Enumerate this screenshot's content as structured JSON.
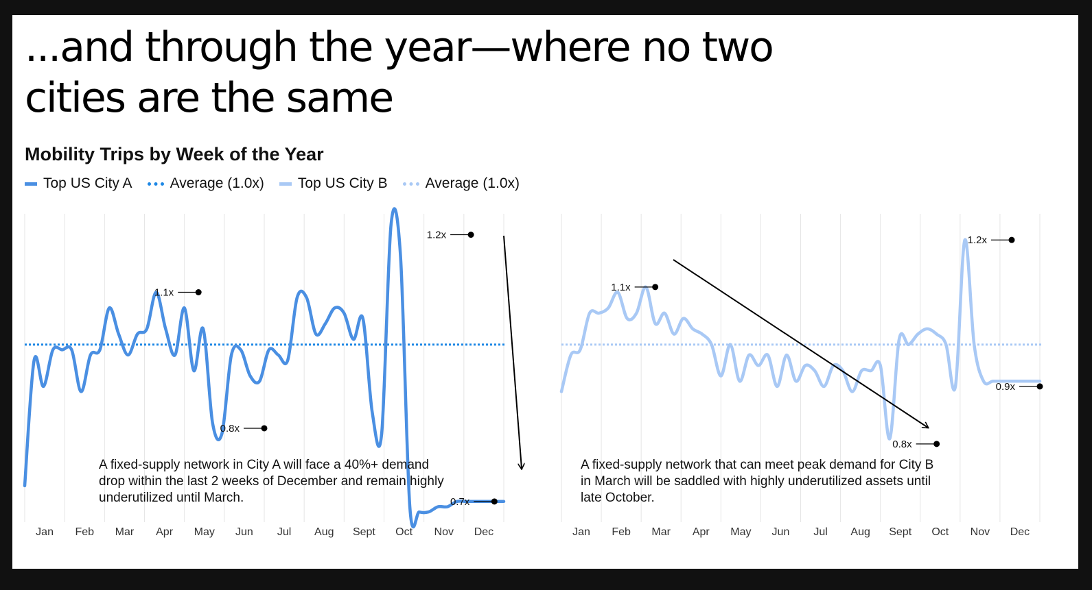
{
  "headline": {
    "line1": "...and through the year—where no two",
    "line2": "cities are the same"
  },
  "chart_title": "Mobility Trips by Week of the Year",
  "legend": [
    {
      "label": "Top US City A",
      "style": "solid",
      "color": "#4A8FE2"
    },
    {
      "label": "Average (1.0x)",
      "style": "dotted",
      "color": "#1E88E5"
    },
    {
      "label": "Top US City B",
      "style": "solid",
      "color": "#A9C9F5"
    },
    {
      "label": "Average (1.0x)",
      "style": "dotted",
      "color": "#A9C9F5"
    }
  ],
  "colors": {
    "city_a": "#4A8FE2",
    "avg_a": "#1E88E5",
    "city_b": "#A9C9F5",
    "avg_b": "#A9C9F5",
    "grid": "#e6e6e6",
    "annotation": "#000000"
  },
  "notes": {
    "city_a": "A fixed-supply network in City A will face a 40%+ demand drop within the last 2 weeks of December and remain highly underutilized until March.",
    "city_b": "A fixed-supply network that can meet peak demand for City B in March will be saddled with highly underutilized assets until late October."
  },
  "chart_data": [
    {
      "type": "line",
      "months": [
        "Jan",
        "Feb",
        "Mar",
        "Apr",
        "May",
        "Jun",
        "Jul",
        "Aug",
        "Sept",
        "Oct",
        "Nov",
        "Dec"
      ],
      "x_unit": "week",
      "xlim": [
        1,
        52
      ],
      "ylim": [
        0.65,
        1.25
      ],
      "average": 1.0,
      "grid": true,
      "series": [
        {
          "name": "Top US City A",
          "x": [
            1,
            2,
            3,
            4,
            5,
            6,
            7,
            8,
            9,
            10,
            11,
            12,
            13,
            14,
            15,
            16,
            17,
            18,
            19,
            20,
            21,
            22,
            23,
            24,
            25,
            26,
            27,
            28,
            29,
            30,
            31,
            32,
            33,
            34,
            35,
            36,
            37,
            38,
            39,
            40,
            41,
            42,
            43,
            44,
            45,
            46,
            47,
            48,
            49,
            50,
            51,
            52
          ],
          "y": [
            0.73,
            0.97,
            0.92,
            0.99,
            0.99,
            0.99,
            0.91,
            0.98,
            0.99,
            1.07,
            1.02,
            0.98,
            1.02,
            1.03,
            1.1,
            1.03,
            0.98,
            1.07,
            0.95,
            1.03,
            0.85,
            0.83,
            0.98,
            0.99,
            0.94,
            0.93,
            0.99,
            0.98,
            0.97,
            1.09,
            1.09,
            1.02,
            1.04,
            1.07,
            1.06,
            1.01,
            1.05,
            0.87,
            0.83,
            1.23,
            1.17,
            0.69,
            0.68,
            0.68,
            0.69,
            0.69,
            0.7,
            0.7,
            0.7,
            0.7,
            0.7,
            0.7
          ]
        }
      ],
      "annotations": [
        {
          "label": "1.1x",
          "week": 19.5,
          "value": 1.1
        },
        {
          "label": "0.8x",
          "week": 26.5,
          "value": 0.84
        },
        {
          "label": "1.2x",
          "week": 48.5,
          "value": 1.21
        },
        {
          "label": "0.7x",
          "week": 51,
          "value": 0.7
        }
      ]
    },
    {
      "type": "line",
      "months": [
        "Jan",
        "Feb",
        "Mar",
        "Apr",
        "May",
        "Jun",
        "Jul",
        "Aug",
        "Sept",
        "Oct",
        "Nov",
        "Dec"
      ],
      "x_unit": "week",
      "xlim": [
        1,
        52
      ],
      "ylim": [
        0.65,
        1.25
      ],
      "average": 1.0,
      "grid": true,
      "series": [
        {
          "name": "Top US City B",
          "x": [
            1,
            2,
            3,
            4,
            5,
            6,
            7,
            8,
            9,
            10,
            11,
            12,
            13,
            14,
            15,
            16,
            17,
            18,
            19,
            20,
            21,
            22,
            23,
            24,
            25,
            26,
            27,
            28,
            29,
            30,
            31,
            32,
            33,
            34,
            35,
            36,
            37,
            38,
            39,
            40,
            41,
            42,
            43,
            44,
            45,
            46,
            47,
            48,
            49,
            50,
            51,
            52
          ],
          "y": [
            0.91,
            0.98,
            0.99,
            1.06,
            1.06,
            1.07,
            1.1,
            1.05,
            1.06,
            1.11,
            1.04,
            1.06,
            1.02,
            1.05,
            1.03,
            1.02,
            1.0,
            0.94,
            1.0,
            0.93,
            0.98,
            0.96,
            0.98,
            0.92,
            0.98,
            0.93,
            0.96,
            0.95,
            0.92,
            0.96,
            0.95,
            0.91,
            0.95,
            0.95,
            0.96,
            0.82,
            1.01,
            1.0,
            1.02,
            1.03,
            1.02,
            1.0,
            0.92,
            1.2,
            1.0,
            0.93,
            0.93,
            0.93,
            0.93,
            0.93,
            0.93,
            0.93
          ]
        }
      ],
      "annotations": [
        {
          "label": "1.1x",
          "week": 11,
          "value": 1.11
        },
        {
          "label": "0.8x",
          "week": 41,
          "value": 0.81
        },
        {
          "label": "1.2x",
          "week": 49,
          "value": 1.2
        },
        {
          "label": "0.9x",
          "week": 52,
          "value": 0.92
        }
      ]
    }
  ]
}
